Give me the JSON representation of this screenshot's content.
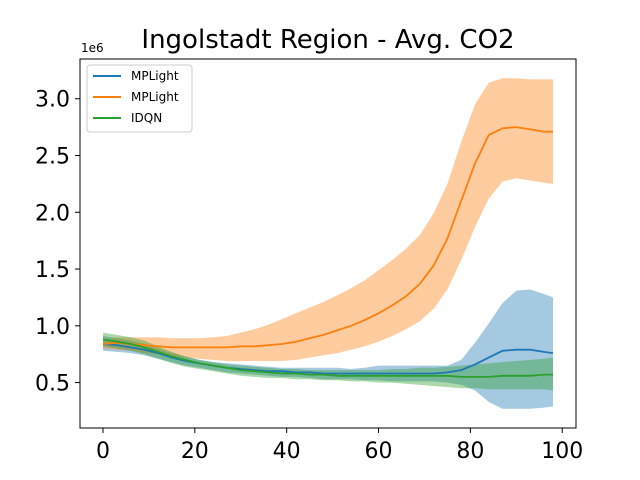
{
  "chart_data": {
    "type": "line",
    "title": "Ingolstadt Region - Avg. CO2",
    "xlabel": "",
    "ylabel": "",
    "y_offset_label": "1e6",
    "xlim": [
      -5,
      103
    ],
    "ylim": [
      0.1,
      3.35
    ],
    "x_ticks": [
      0,
      20,
      40,
      60,
      80,
      100
    ],
    "x_tick_labels": [
      "0",
      "20",
      "40",
      "60",
      "80",
      "100"
    ],
    "y_ticks": [
      0.5,
      1.0,
      1.5,
      2.0,
      2.5,
      3.0
    ],
    "y_tick_labels": [
      "0.5",
      "1.0",
      "1.5",
      "2.0",
      "2.5",
      "3.0"
    ],
    "legend_position": "top-left",
    "grid": false,
    "x": [
      0,
      3,
      6,
      9,
      12,
      15,
      18,
      21,
      24,
      27,
      30,
      33,
      36,
      39,
      42,
      45,
      48,
      51,
      54,
      57,
      60,
      63,
      66,
      69,
      72,
      75,
      78,
      81,
      84,
      87,
      90,
      93,
      96,
      98
    ],
    "series": [
      {
        "name": "MPLight",
        "color": "#1f77b4",
        "values": [
          0.84,
          0.83,
          0.81,
          0.79,
          0.76,
          0.72,
          0.69,
          0.67,
          0.65,
          0.63,
          0.62,
          0.61,
          0.6,
          0.6,
          0.59,
          0.59,
          0.58,
          0.58,
          0.58,
          0.58,
          0.58,
          0.58,
          0.58,
          0.58,
          0.58,
          0.59,
          0.61,
          0.66,
          0.72,
          0.78,
          0.79,
          0.79,
          0.77,
          0.76
        ],
        "upper": [
          0.91,
          0.89,
          0.87,
          0.84,
          0.8,
          0.76,
          0.73,
          0.7,
          0.68,
          0.67,
          0.66,
          0.65,
          0.64,
          0.63,
          0.63,
          0.63,
          0.63,
          0.63,
          0.62,
          0.63,
          0.65,
          0.65,
          0.65,
          0.65,
          0.65,
          0.65,
          0.7,
          0.85,
          1.02,
          1.2,
          1.31,
          1.32,
          1.28,
          1.25
        ],
        "lower": [
          0.78,
          0.77,
          0.76,
          0.74,
          0.71,
          0.68,
          0.65,
          0.63,
          0.61,
          0.59,
          0.58,
          0.57,
          0.56,
          0.55,
          0.55,
          0.54,
          0.53,
          0.53,
          0.53,
          0.52,
          0.52,
          0.51,
          0.51,
          0.51,
          0.51,
          0.5,
          0.48,
          0.43,
          0.33,
          0.27,
          0.27,
          0.27,
          0.28,
          0.29
        ]
      },
      {
        "name": "MPLight",
        "color": "#ff7f0e",
        "values": [
          0.84,
          0.85,
          0.84,
          0.83,
          0.82,
          0.81,
          0.81,
          0.81,
          0.81,
          0.81,
          0.82,
          0.82,
          0.83,
          0.84,
          0.86,
          0.89,
          0.92,
          0.96,
          1.0,
          1.05,
          1.11,
          1.18,
          1.26,
          1.37,
          1.53,
          1.77,
          2.1,
          2.43,
          2.68,
          2.74,
          2.75,
          2.73,
          2.71,
          2.71
        ],
        "upper": [
          0.88,
          0.9,
          0.9,
          0.9,
          0.9,
          0.89,
          0.89,
          0.89,
          0.9,
          0.91,
          0.94,
          0.97,
          1.01,
          1.06,
          1.11,
          1.16,
          1.21,
          1.27,
          1.33,
          1.4,
          1.49,
          1.58,
          1.68,
          1.8,
          1.99,
          2.25,
          2.62,
          2.95,
          3.14,
          3.18,
          3.18,
          3.17,
          3.17,
          3.17
        ],
        "lower": [
          0.8,
          0.79,
          0.78,
          0.76,
          0.75,
          0.73,
          0.72,
          0.71,
          0.7,
          0.69,
          0.69,
          0.69,
          0.69,
          0.69,
          0.7,
          0.72,
          0.74,
          0.76,
          0.79,
          0.82,
          0.86,
          0.91,
          0.97,
          1.04,
          1.15,
          1.32,
          1.58,
          1.87,
          2.12,
          2.27,
          2.3,
          2.28,
          2.26,
          2.25
        ]
      },
      {
        "name": "IDQN",
        "color": "#2ca02c",
        "values": [
          0.88,
          0.86,
          0.84,
          0.81,
          0.77,
          0.73,
          0.7,
          0.67,
          0.65,
          0.63,
          0.61,
          0.6,
          0.59,
          0.58,
          0.58,
          0.57,
          0.57,
          0.56,
          0.56,
          0.56,
          0.56,
          0.56,
          0.56,
          0.56,
          0.56,
          0.56,
          0.55,
          0.55,
          0.55,
          0.56,
          0.56,
          0.56,
          0.57,
          0.57
        ],
        "upper": [
          0.94,
          0.92,
          0.9,
          0.87,
          0.82,
          0.77,
          0.73,
          0.7,
          0.68,
          0.66,
          0.65,
          0.64,
          0.63,
          0.62,
          0.62,
          0.61,
          0.61,
          0.61,
          0.61,
          0.61,
          0.61,
          0.62,
          0.62,
          0.63,
          0.63,
          0.64,
          0.65,
          0.66,
          0.67,
          0.68,
          0.69,
          0.7,
          0.71,
          0.72
        ],
        "lower": [
          0.82,
          0.8,
          0.78,
          0.75,
          0.71,
          0.67,
          0.64,
          0.62,
          0.6,
          0.58,
          0.56,
          0.55,
          0.54,
          0.54,
          0.53,
          0.53,
          0.52,
          0.52,
          0.51,
          0.51,
          0.5,
          0.5,
          0.49,
          0.48,
          0.47,
          0.46,
          0.45,
          0.45,
          0.44,
          0.44,
          0.44,
          0.44,
          0.44,
          0.43
        ]
      }
    ]
  }
}
